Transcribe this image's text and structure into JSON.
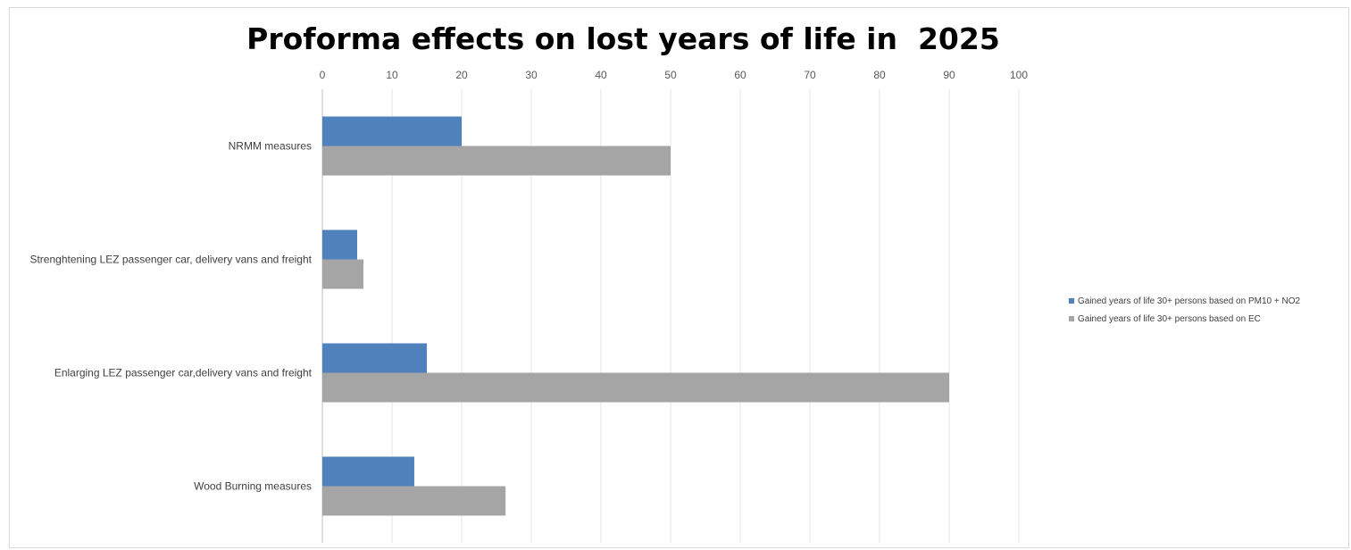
{
  "chart_data": {
    "type": "bar",
    "orientation": "horizontal",
    "title": "Proforma effects on lost years of life in  2025",
    "xlabel": "",
    "ylabel": "",
    "xlim": [
      0,
      100
    ],
    "x_ticks": [
      0,
      10,
      20,
      30,
      40,
      50,
      60,
      70,
      80,
      90,
      100
    ],
    "x_axis_position": "top",
    "grid": true,
    "legend_position": "right",
    "categories": [
      "NRMM measures",
      "Strenghtening LEZ passenger car, delivery vans and freight",
      "Enlarging LEZ passenger car,delivery vans and freight",
      "Wood Burning measures"
    ],
    "series": [
      {
        "name": "Gained years of life 30+ persons based on PM10 + NO2",
        "color": "#4f81bd",
        "values": [
          20,
          5,
          15,
          13.2
        ]
      },
      {
        "name": "Gained years of life 30+ persons based on EC",
        "color": "#a5a5a5",
        "values": [
          50,
          5.9,
          90,
          26.3
        ]
      }
    ]
  }
}
